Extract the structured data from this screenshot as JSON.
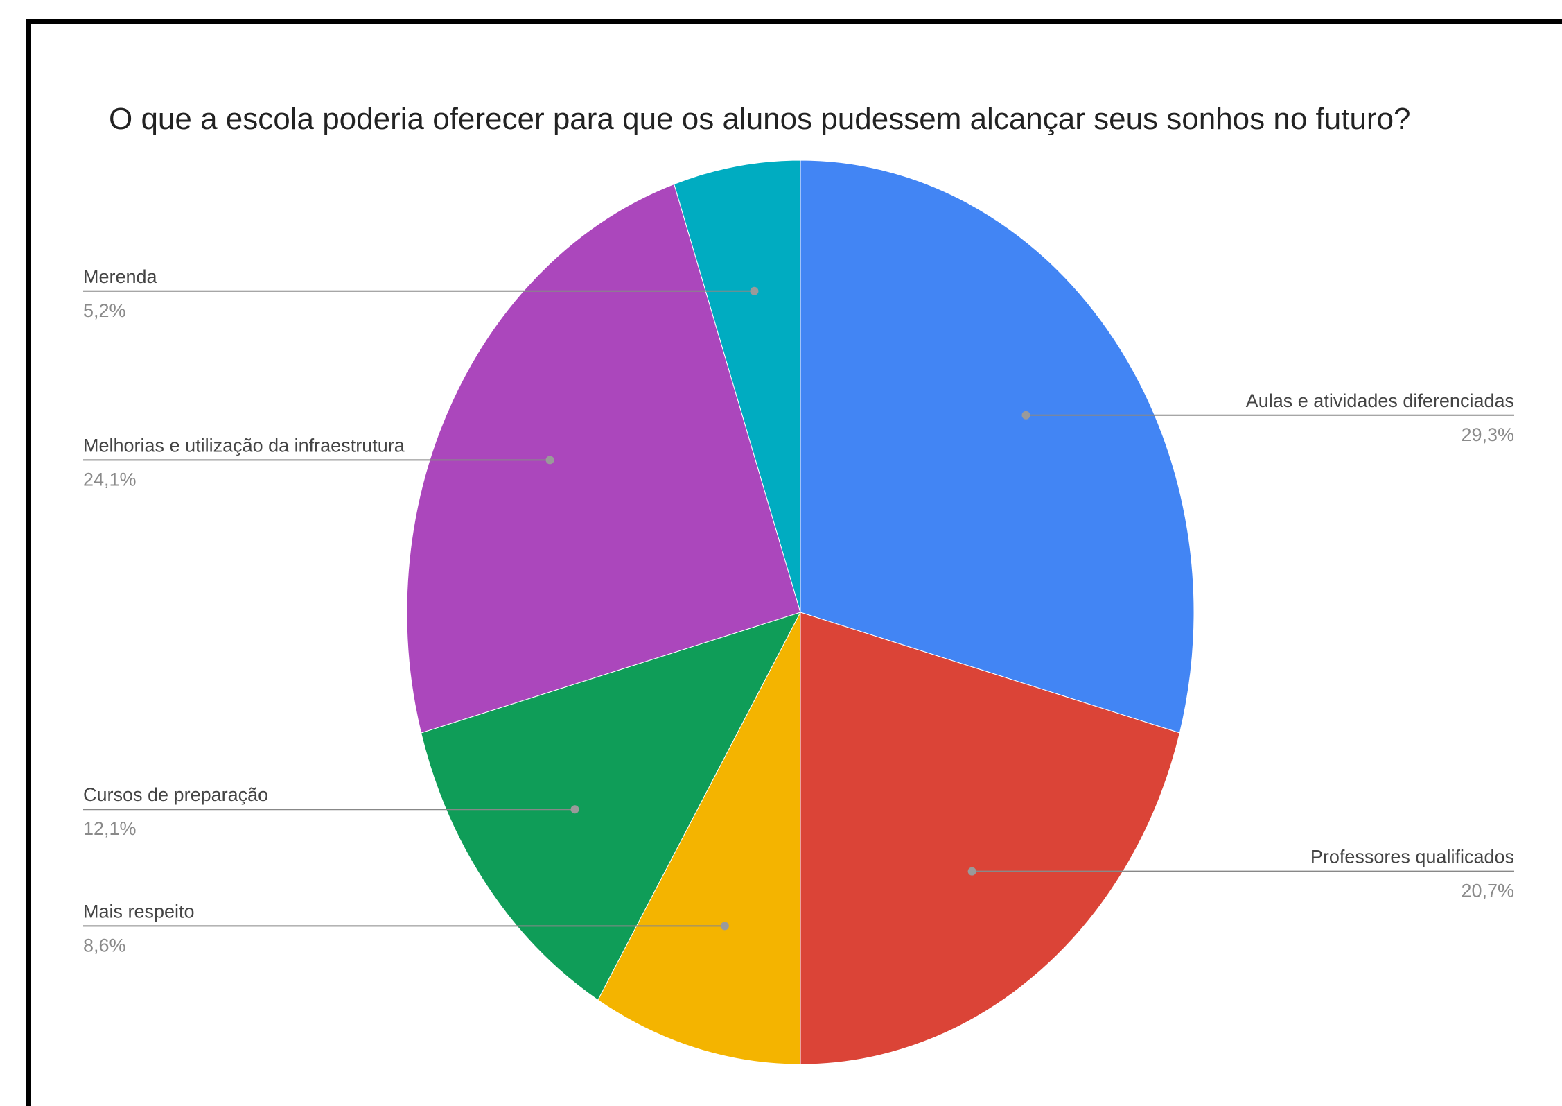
{
  "chart_data": {
    "type": "pie",
    "title": "O que a escola poderia oferecer para que os alunos pudessem alcançar seus sonhos no futuro?",
    "slices": [
      {
        "label": "Aulas e atividades diferenciadas",
        "value": 29.3,
        "value_label": "29,3%",
        "color": "#4285f4",
        "label_side": "right"
      },
      {
        "label": "Professores qualificados",
        "value": 20.7,
        "value_label": "20,7%",
        "color": "#db4437",
        "label_side": "right"
      },
      {
        "label": "Mais respeito",
        "value": 8.6,
        "value_label": "8,6%",
        "color": "#f4b400",
        "label_side": "left"
      },
      {
        "label": "Cursos de preparação",
        "value": 12.1,
        "value_label": "12,1%",
        "color": "#0f9d58",
        "label_side": "left"
      },
      {
        "label": "Melhorias e utilização da infraestrutura",
        "value": 24.1,
        "value_label": "24,1%",
        "color": "#ab47bc",
        "label_side": "left"
      },
      {
        "label": "Merenda",
        "value": 5.2,
        "value_label": "5,2%",
        "color": "#00acc1",
        "label_side": "left"
      }
    ],
    "start_angle": "12 o'clock",
    "direction": "clockwise",
    "legend": "none",
    "label_style": "callout lines with name and percentage"
  }
}
